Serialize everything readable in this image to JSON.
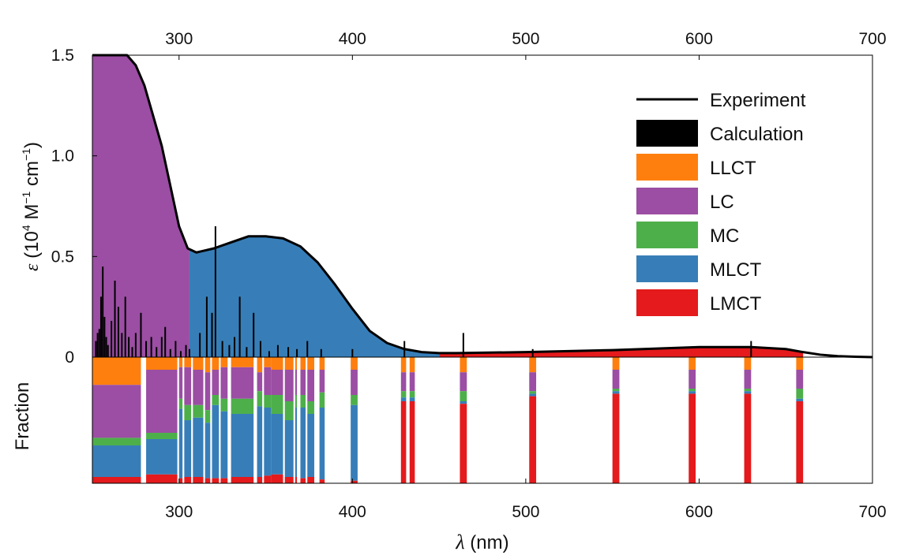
{
  "chart_data": {
    "type": "area",
    "x_axis": {
      "label_symbol": "λ",
      "label_unit": "(nm)",
      "range": [
        250,
        700
      ],
      "ticks": [
        300,
        400,
        500,
        600,
        700
      ],
      "tick_labels": [
        "300",
        "400",
        "500",
        "600",
        "700"
      ]
    },
    "top_panel": {
      "y_axis": {
        "label_symbol": "ε",
        "label_text": "(10",
        "label_sup1": "4",
        "label_mid": " M",
        "label_sup2": "−1",
        "label_mid2": " cm",
        "label_sup3": "−1",
        "label_end": ")",
        "range": [
          0,
          1.5
        ],
        "ticks": [
          0,
          0.5,
          1.0,
          1.5
        ],
        "tick_labels": [
          "0",
          "0.5",
          "1.0",
          "1.5"
        ]
      },
      "experiment": {
        "x": [
          250,
          255,
          260,
          265,
          270,
          275,
          280,
          285,
          290,
          295,
          300,
          305,
          310,
          320,
          330,
          340,
          350,
          360,
          370,
          380,
          390,
          400,
          410,
          420,
          430,
          440,
          450,
          460,
          500,
          550,
          600,
          630,
          650,
          660,
          670,
          680,
          690,
          700
        ],
        "y": [
          1.5,
          1.5,
          1.5,
          1.5,
          1.5,
          1.45,
          1.35,
          1.2,
          1.05,
          0.85,
          0.65,
          0.54,
          0.52,
          0.54,
          0.57,
          0.6,
          0.6,
          0.59,
          0.55,
          0.47,
          0.36,
          0.24,
          0.13,
          0.07,
          0.04,
          0.025,
          0.02,
          0.02,
          0.025,
          0.035,
          0.05,
          0.05,
          0.04,
          0.025,
          0.012,
          0.005,
          0.002,
          0
        ]
      },
      "dominant_band_regions": [
        {
          "character": "LC",
          "x_range": [
            250,
            306
          ]
        },
        {
          "character": "MLCT",
          "x_range": [
            306,
            450
          ]
        },
        {
          "character": "LMCT",
          "x_range": [
            450,
            660
          ]
        }
      ],
      "calculation_sticks": {
        "x": [
          252,
          253,
          254,
          255,
          256,
          257,
          258,
          259,
          261,
          263,
          265,
          267,
          269,
          271,
          273,
          275,
          278,
          281,
          284,
          287,
          290,
          292,
          295,
          298,
          301,
          304,
          306,
          312,
          316,
          319,
          321,
          325,
          329,
          332,
          335,
          339,
          343,
          347,
          352,
          357,
          363,
          368,
          374,
          382,
          400,
          430,
          464,
          504,
          630
        ],
        "y": [
          0.08,
          0.12,
          0.14,
          0.3,
          0.45,
          0.2,
          0.1,
          0.06,
          0.18,
          0.38,
          0.25,
          0.12,
          0.3,
          0.1,
          0.05,
          0.12,
          0.22,
          0.08,
          0.1,
          0.05,
          0.1,
          0.15,
          0.04,
          0.08,
          0.03,
          0.06,
          0.04,
          0.12,
          0.3,
          0.22,
          0.65,
          0.08,
          0.06,
          0.1,
          0.3,
          0.05,
          0.22,
          0.08,
          0.03,
          0.06,
          0.05,
          0.04,
          0.08,
          0.04,
          0.04,
          0.08,
          0.12,
          0.04,
          0.08
        ]
      }
    },
    "bottom_panel": {
      "y_label": "Fraction",
      "range": [
        0,
        1
      ],
      "columns": [
        {
          "x0": 250,
          "x1": 278,
          "LLCT": 0.22,
          "LC": 0.42,
          "MC": 0.06,
          "MLCT": 0.25,
          "LMCT": 0.05
        },
        {
          "x0": 281,
          "x1": 299,
          "LLCT": 0.1,
          "LC": 0.5,
          "MC": 0.05,
          "MLCT": 0.28,
          "LMCT": 0.07
        },
        {
          "x0": 300,
          "x1": 302,
          "LLCT": 0.08,
          "LC": 0.25,
          "MC": 0.08,
          "MLCT": 0.55,
          "LMCT": 0.04
        },
        {
          "x0": 303,
          "x1": 307,
          "LLCT": 0.08,
          "LC": 0.3,
          "MC": 0.12,
          "MLCT": 0.45,
          "LMCT": 0.05
        },
        {
          "x0": 308,
          "x1": 314,
          "LLCT": 0.1,
          "LC": 0.28,
          "MC": 0.1,
          "MLCT": 0.47,
          "LMCT": 0.05
        },
        {
          "x0": 315,
          "x1": 318,
          "LLCT": 0.12,
          "LC": 0.3,
          "MC": 0.1,
          "MLCT": 0.44,
          "LMCT": 0.04
        },
        {
          "x0": 319,
          "x1": 323,
          "LLCT": 0.1,
          "LC": 0.2,
          "MC": 0.08,
          "MLCT": 0.58,
          "LMCT": 0.04
        },
        {
          "x0": 324,
          "x1": 328,
          "LLCT": 0.08,
          "LC": 0.25,
          "MC": 0.1,
          "MLCT": 0.53,
          "LMCT": 0.04
        },
        {
          "x0": 330,
          "x1": 343,
          "LLCT": 0.08,
          "LC": 0.25,
          "MC": 0.12,
          "MLCT": 0.5,
          "LMCT": 0.05
        },
        {
          "x0": 345,
          "x1": 348,
          "LLCT": 0.12,
          "LC": 0.15,
          "MC": 0.12,
          "MLCT": 0.56,
          "LMCT": 0.05
        },
        {
          "x0": 349,
          "x1": 353,
          "LLCT": 0.08,
          "LC": 0.22,
          "MC": 0.1,
          "MLCT": 0.54,
          "LMCT": 0.06
        },
        {
          "x0": 353,
          "x1": 360,
          "LLCT": 0.1,
          "LC": 0.2,
          "MC": 0.15,
          "MLCT": 0.48,
          "LMCT": 0.07
        },
        {
          "x0": 361,
          "x1": 366,
          "LLCT": 0.1,
          "LC": 0.25,
          "MC": 0.15,
          "MLCT": 0.45,
          "LMCT": 0.05
        },
        {
          "x0": 367,
          "x1": 368,
          "LLCT": 0.1,
          "LC": 0.2,
          "MC": 0.1,
          "MLCT": 0.55,
          "LMCT": 0.05
        },
        {
          "x0": 370,
          "x1": 373,
          "LLCT": 0.1,
          "LC": 0.2,
          "MC": 0.1,
          "MLCT": 0.56,
          "LMCT": 0.04
        },
        {
          "x0": 374,
          "x1": 378,
          "LLCT": 0.1,
          "LC": 0.25,
          "MC": 0.1,
          "MLCT": 0.5,
          "LMCT": 0.05
        },
        {
          "x0": 381,
          "x1": 384,
          "LLCT": 0.1,
          "LC": 0.18,
          "MC": 0.12,
          "MLCT": 0.57,
          "LMCT": 0.03
        },
        {
          "x0": 399,
          "x1": 403,
          "LLCT": 0.1,
          "LC": 0.2,
          "MC": 0.08,
          "MLCT": 0.6,
          "LMCT": 0.02
        },
        {
          "x0": 428,
          "x1": 431,
          "LLCT": 0.12,
          "LC": 0.15,
          "MC": 0.05,
          "MLCT": 0.03,
          "LMCT": 0.65
        },
        {
          "x0": 433,
          "x1": 436,
          "LLCT": 0.12,
          "LC": 0.15,
          "MC": 0.05,
          "MLCT": 0.03,
          "LMCT": 0.65
        },
        {
          "x0": 462,
          "x1": 466,
          "LLCT": 0.12,
          "LC": 0.15,
          "MC": 0.08,
          "MLCT": 0.02,
          "LMCT": 0.63
        },
        {
          "x0": 502,
          "x1": 506,
          "LLCT": 0.12,
          "LC": 0.15,
          "MC": 0.02,
          "MLCT": 0.02,
          "LMCT": 0.69
        },
        {
          "x0": 550,
          "x1": 554,
          "LLCT": 0.1,
          "LC": 0.15,
          "MC": 0.02,
          "MLCT": 0.02,
          "LMCT": 0.71
        },
        {
          "x0": 594,
          "x1": 598,
          "LLCT": 0.1,
          "LC": 0.15,
          "MC": 0.02,
          "MLCT": 0.02,
          "LMCT": 0.71
        },
        {
          "x0": 626,
          "x1": 630,
          "LLCT": 0.1,
          "LC": 0.15,
          "MC": 0.02,
          "MLCT": 0.02,
          "LMCT": 0.71
        },
        {
          "x0": 656,
          "x1": 660,
          "LLCT": 0.1,
          "LC": 0.15,
          "MC": 0.08,
          "MLCT": 0.02,
          "LMCT": 0.65
        }
      ]
    },
    "legend": {
      "placement": "top-right",
      "entries": [
        {
          "label": "Experiment",
          "kind": "line",
          "color": "#000000"
        },
        {
          "label": "Calculation",
          "kind": "patch",
          "color": "#000000"
        },
        {
          "label": "LLCT",
          "kind": "patch",
          "color": "#FF7F0E"
        },
        {
          "label": "LC",
          "kind": "patch",
          "color": "#9B4EA3"
        },
        {
          "label": "MC",
          "kind": "patch",
          "color": "#4DAF4A"
        },
        {
          "label": "MLCT",
          "kind": "patch",
          "color": "#377EB8"
        },
        {
          "label": "LMCT",
          "kind": "patch",
          "color": "#E41A1C"
        }
      ]
    },
    "colors": {
      "LLCT": "#FF7F0E",
      "LC": "#9B4EA3",
      "MC": "#4DAF4A",
      "MLCT": "#377EB8",
      "LMCT": "#E41A1C",
      "experiment": "#000000",
      "calculation": "#000000"
    }
  }
}
